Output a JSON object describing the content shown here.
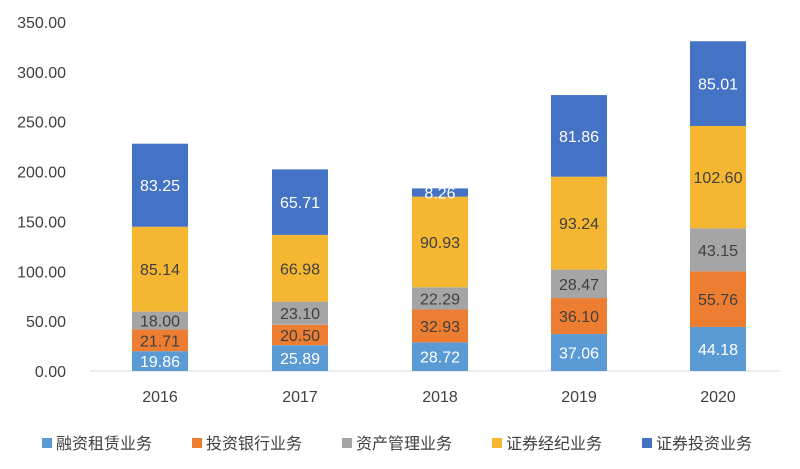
{
  "chart_data": {
    "type": "bar",
    "stacked": true,
    "categories": [
      "2016",
      "2017",
      "2018",
      "2019",
      "2020"
    ],
    "series": [
      {
        "name": "融资租赁业务",
        "color": "#5B9BD5",
        "label_color": "#ffffff",
        "values": [
          19.86,
          25.89,
          28.72,
          37.06,
          44.18
        ]
      },
      {
        "name": "投资银行业务",
        "color": "#ED7D31",
        "label_color": "#404040",
        "values": [
          21.71,
          20.5,
          32.93,
          36.1,
          55.76
        ]
      },
      {
        "name": "资产管理业务",
        "color": "#A5A5A5",
        "label_color": "#404040",
        "values": [
          18.0,
          23.1,
          22.29,
          28.47,
          43.15
        ]
      },
      {
        "name": "证券经纪业务",
        "color": "#F5B731",
        "label_color": "#404040",
        "values": [
          85.14,
          66.98,
          90.93,
          93.24,
          102.6
        ]
      },
      {
        "name": "证券投资业务",
        "color": "#4472C4",
        "label_color": "#ffffff",
        "values": [
          83.25,
          65.71,
          8.26,
          81.86,
          85.01
        ]
      }
    ],
    "ylim": [
      0,
      350
    ],
    "yticks": [
      "0.00",
      "50.00",
      "100.00",
      "150.00",
      "200.00",
      "250.00",
      "300.00",
      "350.00"
    ],
    "legend_position": "bottom",
    "grid": false
  }
}
